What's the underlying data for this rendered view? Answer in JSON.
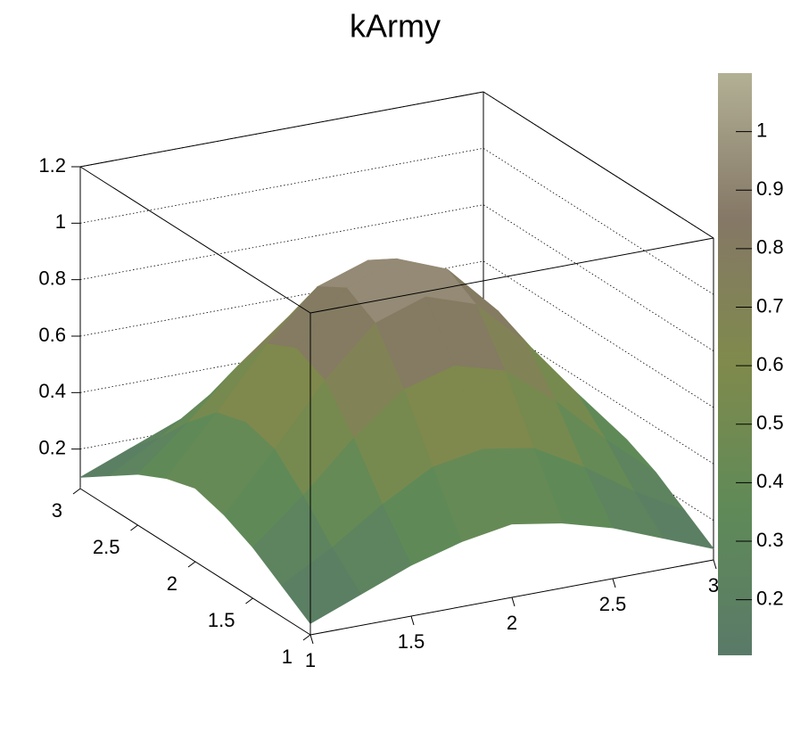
{
  "chart_data": {
    "type": "surface",
    "title": "kArmy",
    "x": [
      1,
      1.25,
      1.5,
      1.75,
      2,
      2.25,
      2.5,
      2.75,
      3
    ],
    "y": [
      1,
      1.25,
      1.5,
      1.75,
      2,
      2.25,
      2.5,
      2.75,
      3
    ],
    "z": [
      [
        0.1,
        0.17,
        0.24,
        0.29,
        0.32,
        0.29,
        0.24,
        0.17,
        0.1
      ],
      [
        0.17,
        0.27,
        0.39,
        0.49,
        0.52,
        0.49,
        0.39,
        0.27,
        0.17
      ],
      [
        0.24,
        0.39,
        0.56,
        0.7,
        0.75,
        0.7,
        0.56,
        0.39,
        0.24
      ],
      [
        0.29,
        0.49,
        0.7,
        0.87,
        0.93,
        0.87,
        0.7,
        0.49,
        0.29
      ],
      [
        0.32,
        0.52,
        0.75,
        0.93,
        1.0,
        0.93,
        0.75,
        0.52,
        0.32
      ],
      [
        0.29,
        0.49,
        0.7,
        0.87,
        0.93,
        0.87,
        0.7,
        0.49,
        0.29
      ],
      [
        0.24,
        0.39,
        0.56,
        0.7,
        0.75,
        0.7,
        0.56,
        0.39,
        0.24
      ],
      [
        0.17,
        0.27,
        0.39,
        0.49,
        0.52,
        0.49,
        0.39,
        0.27,
        0.17
      ],
      [
        0.1,
        0.17,
        0.24,
        0.29,
        0.32,
        0.29,
        0.24,
        0.17,
        0.1
      ]
    ],
    "xlim": [
      1,
      3
    ],
    "ylim": [
      1,
      3
    ],
    "zlim": [
      0.06,
      1.2
    ],
    "xticks": [
      1,
      1.5,
      2,
      2.5,
      3
    ],
    "yticks": [
      1,
      1.5,
      2,
      2.5,
      3
    ],
    "zticks": [
      0.2,
      0.4,
      0.6,
      0.8,
      1,
      1.2
    ],
    "grid": true,
    "palette": [
      "#5a7a68",
      "#5f8a58",
      "#7f8a4c",
      "#857866",
      "#b2b095"
    ],
    "colorbar": {
      "lim": [
        0.105,
        1.1
      ],
      "ticks": [
        0.2,
        0.3,
        0.4,
        0.5,
        0.6,
        0.7,
        0.8,
        0.9,
        1
      ]
    }
  }
}
